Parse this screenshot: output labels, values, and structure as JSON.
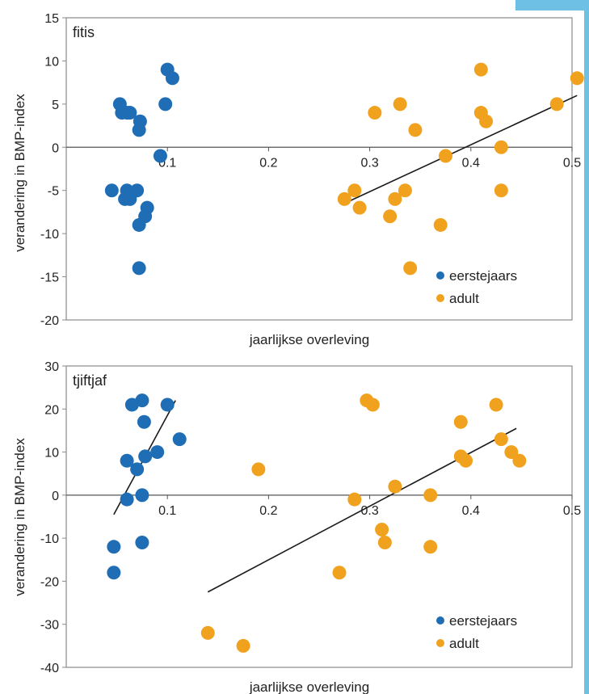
{
  "colors": {
    "eerstejaars": "#1f6db5",
    "adult": "#f0a21e",
    "trend": "#1a1a1a",
    "accent": "#6ec1e4"
  },
  "chart_data": [
    {
      "type": "scatter",
      "title": "fitis",
      "xlabel": "jaarlijkse overleving",
      "ylabel": "verandering in BMP-index",
      "xlim": [
        0,
        0.5
      ],
      "ylim": [
        -20,
        15
      ],
      "xticks": [
        "0.1",
        "0.2",
        "0.3",
        "0.4",
        "0.5"
      ],
      "yticks": [
        "15",
        "10",
        "5",
        "0",
        "-5",
        "-10",
        "-15",
        "-20"
      ],
      "grid": false,
      "legend_position": "bottom-right",
      "series": [
        {
          "name": "eerstejaars",
          "points": [
            [
              0.053,
              5
            ],
            [
              0.055,
              4
            ],
            [
              0.06,
              4
            ],
            [
              0.063,
              4
            ],
            [
              0.073,
              3
            ],
            [
              0.072,
              2
            ],
            [
              0.1,
              9
            ],
            [
              0.105,
              8
            ],
            [
              0.098,
              5
            ],
            [
              0.093,
              -1
            ],
            [
              0.045,
              -5
            ],
            [
              0.058,
              -6
            ],
            [
              0.06,
              -5
            ],
            [
              0.063,
              -6
            ],
            [
              0.07,
              -5
            ],
            [
              0.08,
              -7
            ],
            [
              0.078,
              -8
            ],
            [
              0.072,
              -9
            ],
            [
              0.072,
              -14
            ]
          ]
        },
        {
          "name": "adult",
          "points": [
            [
              0.275,
              -6
            ],
            [
              0.285,
              -5
            ],
            [
              0.29,
              -7
            ],
            [
              0.305,
              4
            ],
            [
              0.32,
              -8
            ],
            [
              0.325,
              -6
            ],
            [
              0.335,
              -5
            ],
            [
              0.33,
              5
            ],
            [
              0.345,
              2
            ],
            [
              0.34,
              -14
            ],
            [
              0.375,
              -1
            ],
            [
              0.37,
              -9
            ],
            [
              0.41,
              9
            ],
            [
              0.41,
              4
            ],
            [
              0.415,
              3
            ],
            [
              0.43,
              0
            ],
            [
              0.43,
              -5
            ],
            [
              0.485,
              5
            ],
            [
              0.505,
              8
            ]
          ]
        }
      ],
      "trendlines": [
        {
          "series": "adult",
          "from": [
            0.275,
            -6.5
          ],
          "to": [
            0.505,
            6
          ]
        }
      ]
    },
    {
      "type": "scatter",
      "title": "tjiftjaf",
      "xlabel": "jaarlijkse overleving",
      "ylabel": "verandering in BMP-index",
      "xlim": [
        0,
        0.5
      ],
      "ylim": [
        -40,
        30
      ],
      "xticks": [
        "0.1",
        "0.2",
        "0.3",
        "0.4",
        "0.5"
      ],
      "yticks": [
        "30",
        "20",
        "10",
        "0",
        "-10",
        "-20",
        "-30",
        "-40"
      ],
      "grid": false,
      "legend_position": "bottom-right",
      "series": [
        {
          "name": "eerstejaars",
          "points": [
            [
              0.065,
              21
            ],
            [
              0.075,
              22
            ],
            [
              0.1,
              21
            ],
            [
              0.077,
              17
            ],
            [
              0.06,
              8
            ],
            [
              0.07,
              6
            ],
            [
              0.078,
              9
            ],
            [
              0.09,
              10
            ],
            [
              0.112,
              13
            ],
            [
              0.06,
              -1
            ],
            [
              0.075,
              0
            ],
            [
              0.075,
              -11
            ],
            [
              0.047,
              -12
            ],
            [
              0.047,
              -18
            ]
          ]
        },
        {
          "name": "adult",
          "points": [
            [
              0.19,
              6
            ],
            [
              0.297,
              22
            ],
            [
              0.303,
              21
            ],
            [
              0.285,
              -1
            ],
            [
              0.312,
              -8
            ],
            [
              0.315,
              -11
            ],
            [
              0.325,
              2
            ],
            [
              0.27,
              -18
            ],
            [
              0.36,
              0
            ],
            [
              0.36,
              -12
            ],
            [
              0.39,
              17
            ],
            [
              0.39,
              9
            ],
            [
              0.395,
              8
            ],
            [
              0.425,
              21
            ],
            [
              0.43,
              13
            ],
            [
              0.44,
              10
            ],
            [
              0.448,
              8
            ],
            [
              0.14,
              -32
            ],
            [
              0.175,
              -35
            ]
          ]
        }
      ],
      "trendlines": [
        {
          "series": "eerstejaars",
          "from": [
            0.047,
            -4.5
          ],
          "to": [
            0.108,
            22
          ]
        },
        {
          "series": "adult",
          "from": [
            0.14,
            -22.5
          ],
          "to": [
            0.445,
            15.5
          ]
        }
      ]
    }
  ]
}
